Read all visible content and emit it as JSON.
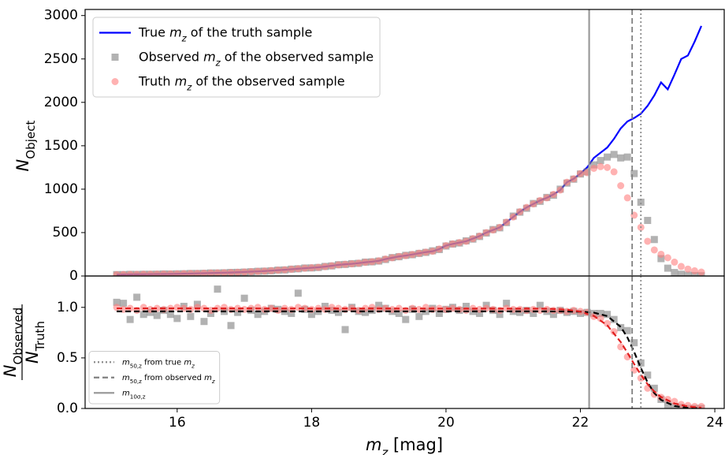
{
  "chart_data": [
    {
      "type": "scatter",
      "ylabel": "N_{Object}",
      "xlim": [
        14.63,
        24.14
      ],
      "ylim": [
        0,
        3070
      ],
      "yticks": [
        0,
        500,
        1000,
        1500,
        2000,
        2500,
        3000
      ],
      "legend": "upper left",
      "x": [
        15.1,
        15.2,
        15.3,
        15.4,
        15.5,
        15.6,
        15.7,
        15.8,
        15.9,
        16.0,
        16.1,
        16.2,
        16.3,
        16.4,
        16.5,
        16.6,
        16.7,
        16.8,
        16.9,
        17.0,
        17.1,
        17.2,
        17.3,
        17.4,
        17.5,
        17.6,
        17.7,
        17.8,
        17.9,
        18.0,
        18.1,
        18.2,
        18.3,
        18.4,
        18.5,
        18.6,
        18.7,
        18.8,
        18.9,
        19.0,
        19.1,
        19.2,
        19.3,
        19.4,
        19.5,
        19.6,
        19.7,
        19.8,
        19.9,
        20.0,
        20.1,
        20.2,
        20.3,
        20.4,
        20.5,
        20.6,
        20.7,
        20.8,
        20.9,
        21.0,
        21.1,
        21.2,
        21.3,
        21.4,
        21.5,
        21.6,
        21.7,
        21.8,
        21.9,
        22.0,
        22.1,
        22.2,
        22.3,
        22.4,
        22.5,
        22.6,
        22.7,
        22.8,
        22.9,
        23.0,
        23.1,
        23.2,
        23.3,
        23.4,
        23.5,
        23.6,
        23.7,
        23.8
      ],
      "series": [
        {
          "name": "True m_{z} of the truth sample",
          "marker": "line",
          "color": "#0000ff",
          "values": [
            15,
            17,
            18,
            19,
            20,
            21,
            22,
            23,
            24,
            25,
            27,
            28,
            30,
            32,
            34,
            36,
            38,
            40,
            43,
            46,
            50,
            53,
            57,
            62,
            67,
            72,
            78,
            84,
            90,
            95,
            100,
            108,
            118,
            128,
            135,
            140,
            148,
            158,
            165,
            175,
            195,
            210,
            225,
            235,
            248,
            262,
            275,
            285,
            310,
            350,
            370,
            385,
            400,
            430,
            460,
            500,
            530,
            560,
            620,
            680,
            740,
            790,
            830,
            870,
            900,
            940,
            990,
            1080,
            1120,
            1180,
            1250,
            1360,
            1420,
            1480,
            1580,
            1700,
            1780,
            1820,
            1870,
            1960,
            2080,
            2230,
            2150,
            2320,
            2500,
            2540,
            2700,
            2880
          ]
        },
        {
          "name": "Observed m_{z} of the observed sample",
          "marker": "square",
          "color": "#7f7f7f",
          "values": [
            16,
            16,
            19,
            18,
            20,
            20,
            21,
            24,
            23,
            25,
            26,
            29,
            29,
            31,
            35,
            35,
            37,
            41,
            42,
            45,
            49,
            54,
            56,
            60,
            68,
            70,
            79,
            83,
            92,
            93,
            98,
            110,
            116,
            130,
            133,
            142,
            146,
            160,
            163,
            172,
            190,
            212,
            222,
            238,
            245,
            260,
            272,
            290,
            305,
            345,
            368,
            380,
            405,
            425,
            455,
            495,
            535,
            555,
            615,
            690,
            735,
            780,
            835,
            860,
            905,
            930,
            1000,
            1070,
            1115,
            1175,
            1200,
            1280,
            1330,
            1370,
            1400,
            1360,
            1370,
            1180,
            850,
            640,
            420,
            200,
            90,
            40,
            20,
            10,
            5,
            3
          ]
        },
        {
          "name": "Truth m_{z} of the observed sample",
          "marker": "circle",
          "color": "#ff7f7f",
          "values": [
            15,
            17,
            18,
            19,
            20,
            21,
            22,
            23,
            24,
            25,
            27,
            28,
            30,
            32,
            34,
            36,
            38,
            40,
            43,
            46,
            50,
            53,
            57,
            62,
            67,
            72,
            78,
            84,
            90,
            95,
            100,
            108,
            118,
            128,
            135,
            140,
            148,
            158,
            165,
            175,
            195,
            210,
            225,
            235,
            248,
            262,
            275,
            285,
            310,
            350,
            370,
            385,
            400,
            430,
            460,
            500,
            530,
            560,
            620,
            680,
            740,
            790,
            830,
            870,
            900,
            940,
            990,
            1080,
            1120,
            1180,
            1190,
            1240,
            1260,
            1250,
            1200,
            1040,
            900,
            700,
            560,
            400,
            300,
            250,
            210,
            160,
            110,
            80,
            60,
            45
          ]
        }
      ]
    },
    {
      "type": "scatter",
      "xlabel": "m_{z} [mag]",
      "ylabel": {
        "numerator": "N_{Observed}",
        "denominator": "N_{Truth}"
      },
      "xlim": [
        14.63,
        24.14
      ],
      "ylim": [
        0,
        1.31
      ],
      "xticks": [
        16,
        18,
        20,
        22,
        24
      ],
      "yticks": [
        {
          "value": 0,
          "label": "0.0"
        },
        0.5,
        {
          "value": 1,
          "label": "1.0"
        }
      ],
      "legend": "lower left",
      "x": [
        15.1,
        15.2,
        15.3,
        15.4,
        15.5,
        15.6,
        15.7,
        15.8,
        15.9,
        16.0,
        16.1,
        16.2,
        16.3,
        16.4,
        16.5,
        16.6,
        16.7,
        16.8,
        16.9,
        17.0,
        17.1,
        17.2,
        17.3,
        17.4,
        17.5,
        17.6,
        17.7,
        17.8,
        17.9,
        18.0,
        18.1,
        18.2,
        18.3,
        18.4,
        18.5,
        18.6,
        18.7,
        18.8,
        18.9,
        19.0,
        19.1,
        19.2,
        19.3,
        19.4,
        19.5,
        19.6,
        19.7,
        19.8,
        19.9,
        20.0,
        20.1,
        20.2,
        20.3,
        20.4,
        20.5,
        20.6,
        20.7,
        20.8,
        20.9,
        21.0,
        21.1,
        21.2,
        21.3,
        21.4,
        21.5,
        21.6,
        21.7,
        21.8,
        21.9,
        22.0,
        22.1,
        22.2,
        22.3,
        22.4,
        22.5,
        22.6,
        22.7,
        22.8,
        22.9,
        23.0,
        23.1,
        23.2,
        23.3,
        23.4,
        23.5,
        23.6,
        23.7,
        23.8
      ],
      "series": [
        {
          "marker": "square",
          "color": "#7f7f7f",
          "values": [
            1.05,
            1.04,
            0.88,
            1.1,
            0.93,
            0.95,
            0.92,
            0.97,
            0.93,
            0.89,
            1.01,
            0.91,
            1.03,
            0.86,
            0.94,
            1.18,
            0.96,
            0.82,
            0.95,
            1.09,
            0.97,
            0.93,
            0.96,
            0.99,
            0.98,
            0.96,
            0.94,
            1.14,
            0.98,
            0.93,
            0.96,
            1.01,
            0.97,
            0.95,
            0.78,
            1.0,
            0.96,
            0.95,
            0.97,
            1.02,
            0.99,
            0.96,
            0.94,
            0.88,
            0.98,
            0.91,
            0.96,
            0.99,
            0.94,
            0.98,
            1.0,
            0.97,
            1.01,
            0.96,
            0.94,
            1.02,
            0.97,
            0.93,
            1.04,
            0.96,
            0.95,
            0.97,
            0.94,
            1.02,
            0.96,
            0.93,
            0.97,
            0.95,
            0.96,
            0.94,
            0.95,
            0.94,
            0.94,
            0.93,
            0.88,
            0.8,
            0.77,
            0.65,
            0.45,
            0.33,
            0.2,
            0.09,
            0.04,
            0.02,
            0.01,
            0.0,
            0.0,
            0.0
          ]
        },
        {
          "marker": "circle",
          "color": "#ff7f7f",
          "values": [
            1.0,
            0.98,
            0.99,
            0.97,
            1.0,
            0.98,
            0.99,
            0.98,
            0.99,
            1.0,
            0.99,
            0.98,
            1.0,
            0.99,
            0.97,
            0.99,
            1.0,
            0.98,
            0.99,
            0.98,
            0.99,
            1.0,
            0.98,
            0.99,
            0.97,
            0.99,
            0.98,
            1.0,
            0.99,
            0.98,
            0.99,
            0.98,
            1.0,
            0.99,
            0.98,
            0.99,
            0.97,
            0.99,
            1.0,
            0.98,
            0.99,
            0.98,
            0.99,
            0.97,
            0.99,
            0.98,
            1.0,
            0.98,
            0.99,
            0.98,
            0.99,
            0.98,
            0.97,
            0.99,
            0.98,
            0.99,
            0.98,
            0.97,
            0.99,
            0.98,
            0.98,
            0.97,
            0.98,
            0.97,
            0.98,
            0.97,
            0.97,
            0.96,
            0.97,
            0.96,
            0.95,
            0.91,
            0.89,
            0.84,
            0.76,
            0.61,
            0.51,
            0.38,
            0.3,
            0.2,
            0.14,
            0.11,
            0.09,
            0.07,
            0.04,
            0.03,
            0.02,
            0.02
          ]
        },
        {
          "marker": "dashed",
          "color": "#000000",
          "x": [
            15.1,
            21.5,
            21.8,
            22.0,
            22.2,
            22.4,
            22.6,
            22.7,
            22.8,
            22.9,
            23.0,
            23.1,
            23.2,
            23.4,
            23.6,
            23.8
          ],
          "values": [
            0.96,
            0.96,
            0.959,
            0.957,
            0.948,
            0.914,
            0.807,
            0.702,
            0.559,
            0.4,
            0.258,
            0.152,
            0.085,
            0.024,
            0.006,
            0.0015
          ]
        },
        {
          "marker": "dashed",
          "color": "#e02020",
          "x": [
            15.1,
            21.5,
            21.8,
            22.0,
            22.2,
            22.4,
            22.6,
            22.7,
            22.8,
            22.9,
            23.0,
            23.1,
            23.2,
            23.4,
            23.6,
            23.8
          ],
          "values": [
            0.99,
            0.987,
            0.977,
            0.958,
            0.915,
            0.822,
            0.657,
            0.551,
            0.439,
            0.333,
            0.24,
            0.168,
            0.113,
            0.049,
            0.02,
            0.008
          ]
        }
      ],
      "vlines": [
        {
          "name": "m_{50,z} from true m_{z}",
          "x": 22.9,
          "style": "dotted",
          "color": "#8c8c8c"
        },
        {
          "name": "m_{50,z} from observed m_{z}",
          "x": 22.77,
          "style": "dashed",
          "color": "#808080"
        },
        {
          "name": "m_{10σ,z}",
          "x": 22.13,
          "style": "solid",
          "color": "#9a9a9a"
        }
      ]
    }
  ]
}
